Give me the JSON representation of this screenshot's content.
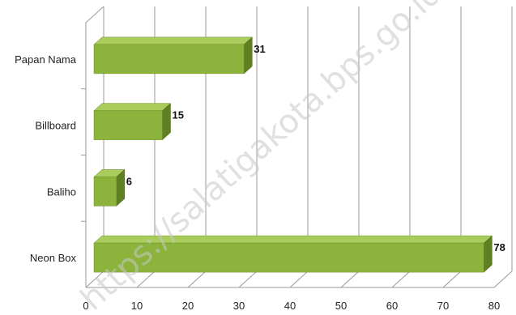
{
  "chart_data": {
    "type": "bar",
    "orientation": "horizontal",
    "style": "3d",
    "categories": [
      "Papan Nama",
      "Billboard",
      "Baliho",
      "Neon Box"
    ],
    "values": [
      31,
      15,
      6,
      78
    ],
    "xlim": [
      0,
      80
    ],
    "x_ticks": [
      0,
      10,
      20,
      30,
      40,
      50,
      60,
      70,
      80
    ],
    "grid": true,
    "data_labels": true,
    "bar_color": "#8cb43c",
    "bar_top_color": "#a9cc5c",
    "bar_side_color": "#5f7f22"
  },
  "watermark": "https://salatigakota.bps.go.id"
}
